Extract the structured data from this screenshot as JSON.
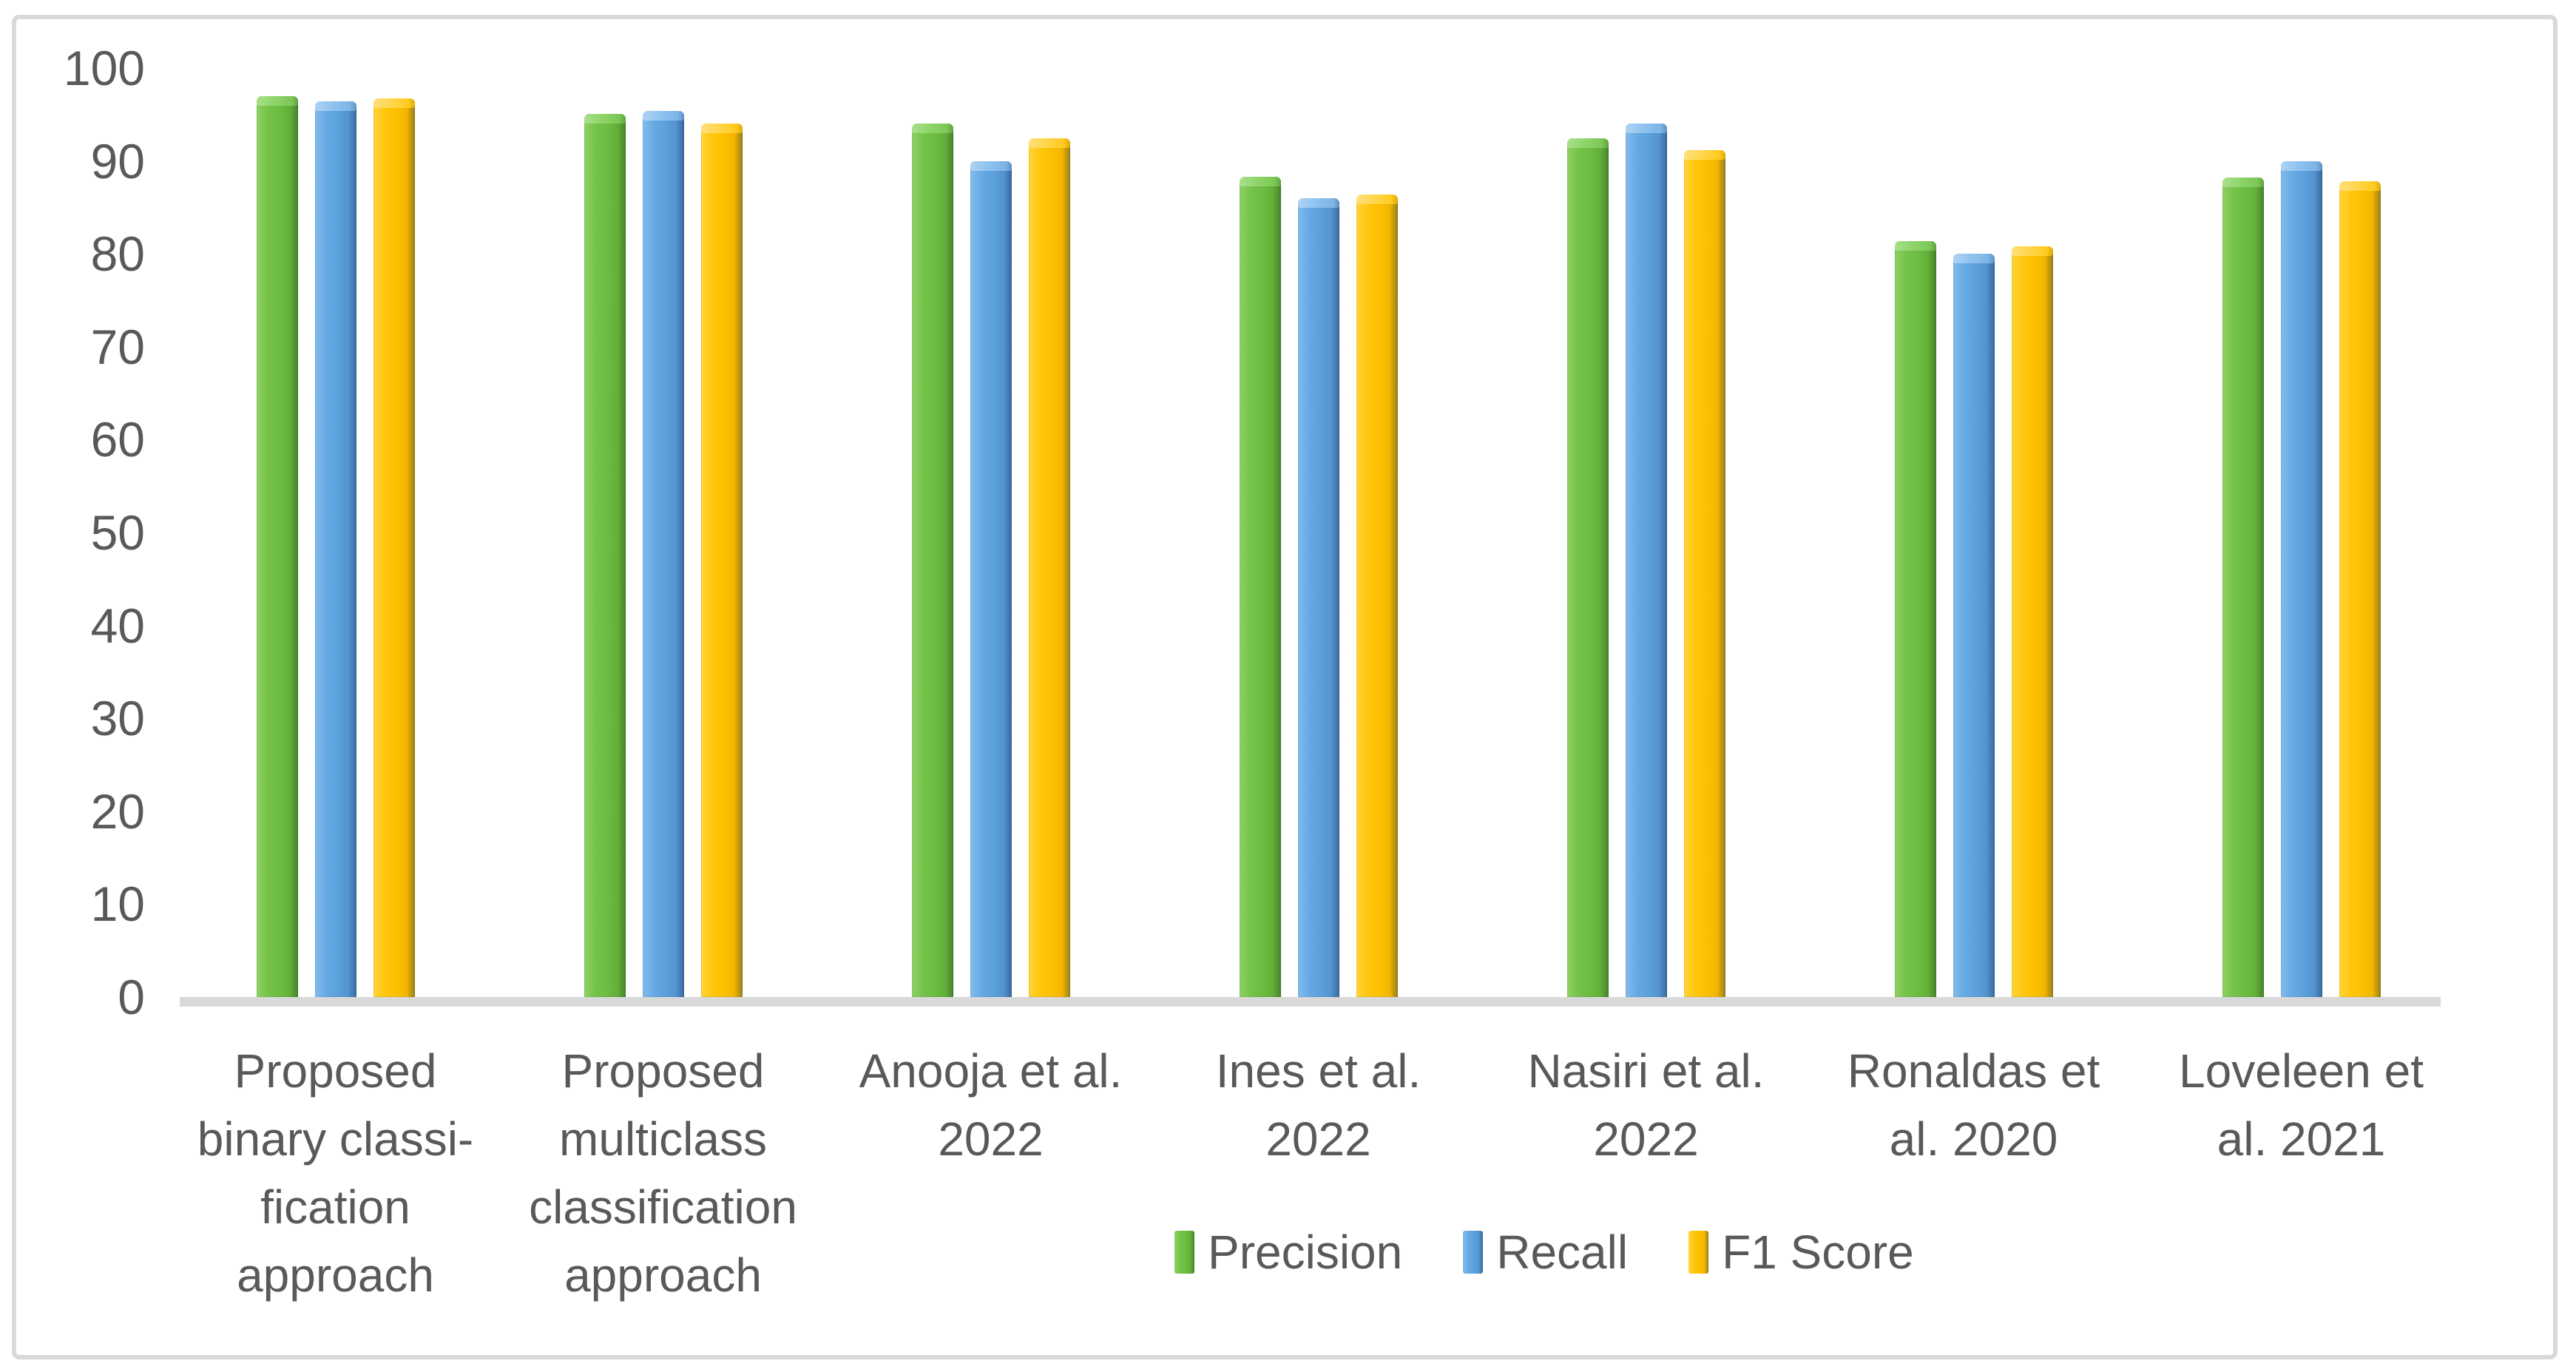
{
  "frame": {
    "border_color": "#d9d9d9",
    "background": "#ffffff",
    "text_color": "#595959"
  },
  "chart_data": {
    "type": "bar",
    "title": "",
    "xlabel": "",
    "ylabel": "",
    "grid": false,
    "yaxis": {
      "min": 0,
      "max": 100,
      "step": 10,
      "tick_labels": [
        "0",
        "10",
        "20",
        "30",
        "40",
        "50",
        "60",
        "70",
        "80",
        "90",
        "100"
      ]
    },
    "categories": [
      {
        "label": "Proposed binary classification approach",
        "lines": [
          "Proposed",
          "binary classi-",
          "fication",
          "approach"
        ]
      },
      {
        "label": "Proposed multiclass classification approach",
        "lines": [
          "Proposed",
          "multiclass",
          "classification",
          "approach"
        ]
      },
      {
        "label": "Anooja et al. 2022",
        "lines": [
          "Anooja et al.",
          "2022"
        ]
      },
      {
        "label": "Ines et al. 2022",
        "lines": [
          "Ines et al.",
          "2022"
        ]
      },
      {
        "label": "Nasiri et al. 2022",
        "lines": [
          "Nasiri et al.",
          "2022"
        ]
      },
      {
        "label": "Ronaldas et al. 2020",
        "lines": [
          "Ronaldas et",
          "al. 2020"
        ]
      },
      {
        "label": "Loveleen et al. 2021",
        "lines": [
          "Loveleen et",
          "al. 2021"
        ]
      }
    ],
    "series": [
      {
        "name": "Precision",
        "color": "#70ad47",
        "values": [
          97.0,
          95.1,
          94.0,
          88.3,
          92.4,
          81.4,
          88.2
        ]
      },
      {
        "name": "Recall",
        "color": "#5b9bd5",
        "values": [
          96.4,
          95.4,
          90.0,
          86.0,
          94.0,
          80.0,
          90.0
        ]
      },
      {
        "name": "F1 Score",
        "color": "#ffc000",
        "values": [
          96.7,
          94.0,
          92.4,
          86.4,
          91.2,
          80.8,
          87.8
        ]
      }
    ],
    "legend": {
      "position": "bottom",
      "entries": [
        "Precision",
        "Recall",
        "F1 Score"
      ]
    }
  }
}
